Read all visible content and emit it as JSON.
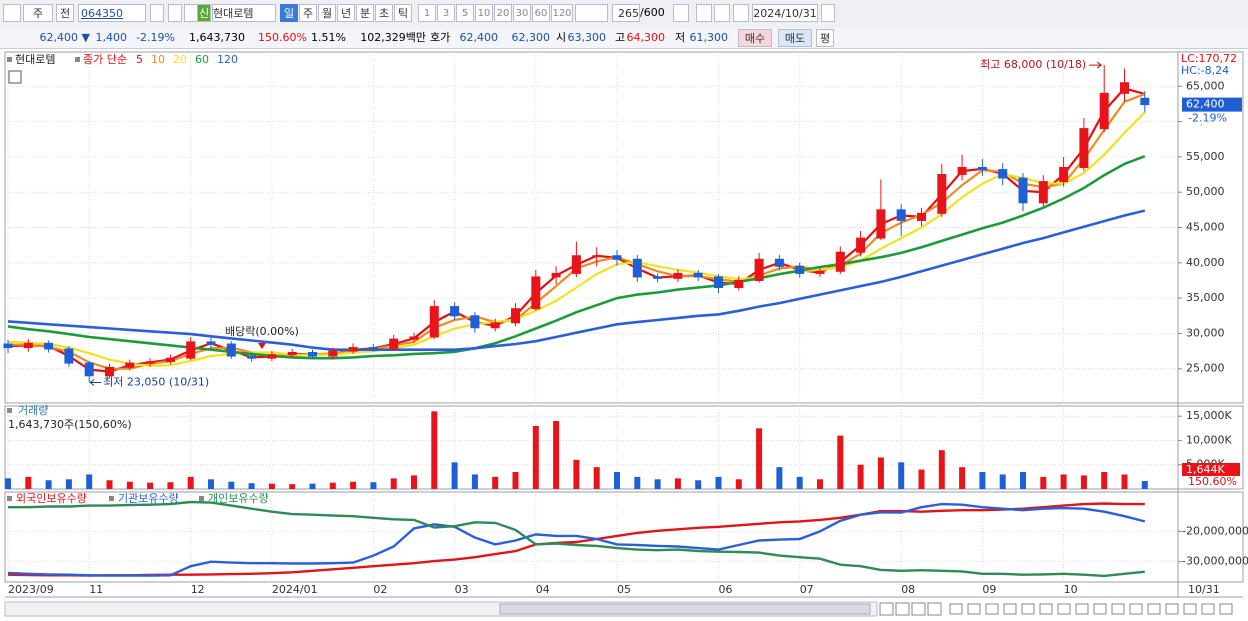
{
  "toolbar": {
    "period": "주",
    "prev": "전",
    "code": "064350",
    "badge": "신",
    "name": "현대로템",
    "tabs": [
      "일",
      "주",
      "월",
      "년",
      "분",
      "초",
      "틱"
    ],
    "intervals": [
      "1",
      "3",
      "5",
      "10",
      "20",
      "30",
      "60",
      "120"
    ],
    "count": "265",
    "max": "/600",
    "date": "2024/10/31"
  },
  "quote": {
    "price": "62,400 ▼",
    "change": "1,400",
    "rate": "-2.19%",
    "volume": "1,643,730",
    "volume_rate": "150.60%",
    "turnover": "1.51%",
    "amount": "102,329백만",
    "ask_label": "호가",
    "ask": "62,400",
    "bid": "62,300",
    "open_label": "시",
    "open": "63,300",
    "high_label": "고",
    "high": "64,300",
    "low_label": "저",
    "low": "61,300",
    "buy": "매수",
    "sell": "매도",
    "eval": "평"
  },
  "chart_data": [
    {
      "type": "candlestick",
      "title": "현대로템",
      "legend_title": "종가 단순",
      "lc_label": "LC:170,72",
      "hc_label": "HC:-8,24",
      "last_label": "62,400",
      "change_label": "-2.19%",
      "categories": [
        "2023/09",
        null,
        null,
        null,
        "11",
        null,
        null,
        null,
        null,
        "12",
        null,
        null,
        null,
        "2024/01",
        null,
        null,
        null,
        null,
        "02",
        null,
        null,
        null,
        "03",
        null,
        null,
        null,
        "04",
        null,
        null,
        null,
        "05",
        null,
        null,
        null,
        null,
        "06",
        null,
        null,
        null,
        "07",
        null,
        null,
        null,
        null,
        "08",
        null,
        null,
        null,
        "09",
        null,
        null,
        null,
        "10",
        null,
        null,
        null,
        null
      ],
      "open": [
        28500,
        28000,
        28600,
        27800,
        25800,
        24000,
        25200,
        25800,
        26000,
        26500,
        28800,
        28500,
        26800,
        26500,
        27000,
        27300,
        26800,
        27500,
        28000,
        27800,
        29200,
        29500,
        33800,
        32500,
        30800,
        31500,
        33500,
        38000,
        38500,
        41000,
        41000,
        40500,
        38000,
        37800,
        38500,
        38000,
        36500,
        37500,
        40500,
        39500,
        38500,
        38800,
        41500,
        43500,
        47500,
        46000,
        47000,
        52500,
        53500,
        53200,
        52000,
        48500,
        51500,
        53500,
        59000,
        64000,
        63300
      ],
      "high": [
        29100,
        29200,
        29000,
        28200,
        26100,
        25700,
        26300,
        26500,
        27000,
        29500,
        29400,
        28900,
        27300,
        27500,
        27800,
        27700,
        28000,
        28600,
        28500,
        29800,
        30100,
        34700,
        34400,
        33000,
        32100,
        34300,
        39000,
        39500,
        43000,
        42200,
        41800,
        41100,
        38500,
        39100,
        39000,
        38400,
        38100,
        41400,
        41100,
        40000,
        39400,
        42300,
        44500,
        51800,
        48300,
        47800,
        54000,
        55300,
        54700,
        54100,
        52700,
        52400,
        55000,
        60500,
        68000,
        67500,
        64300
      ],
      "low": [
        27200,
        27400,
        27300,
        25300,
        23050,
        23700,
        24800,
        25300,
        25600,
        26200,
        27900,
        26400,
        26000,
        26100,
        26600,
        26400,
        26400,
        27100,
        27400,
        27500,
        28800,
        29200,
        31900,
        30100,
        30300,
        31000,
        33200,
        37000,
        38000,
        39500,
        39600,
        37300,
        37200,
        37300,
        37400,
        35700,
        36100,
        37200,
        38900,
        37900,
        38000,
        38400,
        40900,
        43200,
        43800,
        45200,
        46500,
        51700,
        52300,
        51000,
        47300,
        48000,
        50800,
        53000,
        58500,
        62800,
        61300
      ],
      "close": [
        28000,
        28600,
        27800,
        25800,
        24000,
        25200,
        25800,
        26000,
        26500,
        28800,
        28500,
        26800,
        26500,
        27000,
        27300,
        26800,
        27500,
        28000,
        27800,
        29200,
        29500,
        33800,
        32500,
        30800,
        31500,
        33500,
        38000,
        38500,
        41000,
        41000,
        40500,
        38000,
        37800,
        38500,
        38000,
        36500,
        37500,
        40500,
        39500,
        38500,
        38800,
        41500,
        43500,
        47500,
        46000,
        47000,
        52500,
        53500,
        53200,
        52000,
        48500,
        51500,
        53500,
        59000,
        64000,
        65500,
        62400
      ],
      "up_color": "#e8141a",
      "down_color": "#1e5fd6",
      "series": [
        {
          "name": "5",
          "color": "#e01010",
          "values": [
            28200,
            28300,
            28200,
            26800,
            24900,
            24600,
            25500,
            25900,
            26300,
            27600,
            28600,
            27600,
            26600,
            26700,
            27100,
            27000,
            27100,
            27700,
            27900,
            28500,
            29300,
            31600,
            33100,
            31600,
            31100,
            32500,
            35700,
            38200,
            39700,
            41000,
            40700,
            39200,
            37900,
            38100,
            38200,
            37200,
            37000,
            39000,
            40000,
            39000,
            38600,
            40100,
            42500,
            45500,
            46700,
            46500,
            49700,
            53000,
            53300,
            52600,
            50200,
            50000,
            52500,
            56200,
            61500,
            64700,
            63900
          ]
        },
        {
          "name": "10",
          "color": "#f08a20",
          "values": [
            28400,
            28400,
            28100,
            27400,
            25900,
            25000,
            25000,
            25700,
            26100,
            27100,
            27900,
            28000,
            27300,
            26800,
            26900,
            27000,
            27200,
            27400,
            27800,
            28300,
            28800,
            30800,
            31900,
            32400,
            31600,
            31900,
            34300,
            36700,
            39200,
            40200,
            40800,
            39800,
            38800,
            38100,
            38100,
            37700,
            37300,
            38200,
            39200,
            39500,
            38900,
            39600,
            41300,
            44200,
            45700,
            46800,
            48500,
            51000,
            53100,
            52900,
            51200,
            50700,
            51200,
            54700,
            58800,
            62800,
            63900
          ]
        },
        {
          "name": "20",
          "color": "#f2e21e",
          "values": [
            28800,
            28700,
            28500,
            28000,
            27200,
            26300,
            25700,
            25400,
            25500,
            26100,
            26800,
            27100,
            27300,
            27300,
            27000,
            26900,
            27000,
            27300,
            27500,
            27900,
            28400,
            29600,
            30700,
            31300,
            31600,
            32000,
            33200,
            34600,
            36500,
            38400,
            39800,
            40100,
            39500,
            39000,
            38600,
            38100,
            37700,
            37900,
            38400,
            38800,
            39000,
            39400,
            40300,
            42000,
            43500,
            45000,
            46900,
            49300,
            51200,
            52600,
            52000,
            51300,
            51200,
            52700,
            55300,
            58400,
            61300
          ]
        },
        {
          "name": "60",
          "color": "#1e9a3c",
          "values": [
            31000,
            30600,
            30300,
            29900,
            29500,
            29200,
            28900,
            28600,
            28300,
            28000,
            27700,
            27400,
            27100,
            26800,
            26600,
            26500,
            26500,
            26600,
            26800,
            26900,
            27100,
            27200,
            27400,
            27900,
            28600,
            29600,
            30700,
            31800,
            33000,
            34000,
            35000,
            35500,
            35800,
            36200,
            36500,
            36800,
            37300,
            37800,
            38400,
            38900,
            39400,
            39800,
            40300,
            40800,
            41400,
            42200,
            43100,
            44000,
            44900,
            45700,
            46700,
            47800,
            49100,
            50600,
            52400,
            54000,
            55100
          ]
        },
        {
          "name": "120",
          "color": "#2a5fd8",
          "values": [
            31700,
            31500,
            31300,
            31100,
            30900,
            30700,
            30500,
            30300,
            30100,
            29900,
            29600,
            29300,
            29000,
            28700,
            28400,
            28000,
            27700,
            27700,
            27700,
            27700,
            27700,
            27700,
            27700,
            27900,
            28200,
            28500,
            28900,
            29500,
            30100,
            30700,
            31300,
            31600,
            31900,
            32200,
            32500,
            32700,
            33200,
            33800,
            34300,
            34900,
            35500,
            36100,
            36700,
            37300,
            38000,
            38800,
            39600,
            40400,
            41200,
            42000,
            42800,
            43500,
            44300,
            45100,
            45900,
            46700,
            47400
          ]
        }
      ],
      "annotations": [
        {
          "text": "최고 68,000 (10/18)"
        },
        {
          "text": "최저 23,050 (10/31)"
        },
        {
          "text": "배당락(0.00%)"
        }
      ],
      "ylim": [
        20150,
        69850
      ],
      "yticks": [
        {
          "value": 25000,
          "label": "25,000"
        },
        {
          "value": 30000,
          "label": "30,000"
        },
        {
          "value": 35000,
          "label": "35,000"
        },
        {
          "value": 40000,
          "label": "40,000"
        },
        {
          "value": 45000,
          "label": "45,000"
        },
        {
          "value": 50000,
          "label": "50,000"
        },
        {
          "value": 55000,
          "label": "55,000"
        },
        {
          "value": 60000,
          "label": "60,000"
        },
        {
          "value": 65000,
          "label": "65,000"
        }
      ],
      "grid": true,
      "x_end_label": "10/31"
    },
    {
      "type": "bar",
      "title": "거래량",
      "subtitle": "1,643,730주(150,60%)",
      "last_label": "1,644K",
      "rate_label": "150.60%",
      "values": [
        2200,
        2500,
        1800,
        2000,
        3000,
        1800,
        1500,
        1300,
        1400,
        2500,
        2000,
        1500,
        1200,
        1100,
        1000,
        1100,
        1300,
        1500,
        1400,
        2200,
        2800,
        16000,
        5500,
        3000,
        2500,
        3500,
        13000,
        14000,
        6000,
        4500,
        3500,
        2500,
        2000,
        2200,
        1800,
        2500,
        2000,
        12500,
        4500,
        2500,
        2000,
        11000,
        5000,
        6500,
        5500,
        4000,
        8000,
        4500,
        3500,
        3000,
        3500,
        2500,
        3000,
        2800,
        3500,
        3000,
        1643.73
      ],
      "ylim": [
        0,
        17100
      ],
      "yticks": [
        {
          "value": 5000,
          "label": "5,000K"
        },
        {
          "value": 10000,
          "label": "10,000K"
        },
        {
          "value": 15000,
          "label": "15,000K"
        }
      ],
      "grid": true
    },
    {
      "type": "line",
      "series": [
        {
          "name": "외국인보유수량",
          "color": "#e0141a",
          "values": [
            -34300000,
            -34400000,
            -34500000,
            -34500000,
            -34600000,
            -34500000,
            -34500000,
            -34400000,
            -34300000,
            -34300000,
            -34200000,
            -34100000,
            -34000000,
            -33800000,
            -33500000,
            -33000000,
            -32500000,
            -32000000,
            -31500000,
            -31000000,
            -30500000,
            -29800000,
            -29300000,
            -28500000,
            -27500000,
            -26500000,
            -24300000,
            -23800000,
            -23500000,
            -22500000,
            -21500000,
            -20500000,
            -19800000,
            -19300000,
            -18800000,
            -18500000,
            -18000000,
            -17500000,
            -17000000,
            -16700000,
            -16200000,
            -15500000,
            -14500000,
            -13300000,
            -13300000,
            -13500000,
            -13200000,
            -13000000,
            -13000000,
            -12800000,
            -12500000,
            -12000000,
            -11500000,
            -11000000,
            -10800000,
            -11000000,
            -11000000
          ]
        },
        {
          "name": "기관보유수량",
          "color": "#2a5fd8",
          "values": [
            -33700000,
            -34000000,
            -34200000,
            -34300000,
            -34500000,
            -34600000,
            -34600000,
            -34600000,
            -34500000,
            -31500000,
            -30000000,
            -30300000,
            -30500000,
            -30500000,
            -30600000,
            -30600000,
            -30500000,
            -30300000,
            -28000000,
            -25000000,
            -19000000,
            -17700000,
            -18500000,
            -22000000,
            -24300000,
            -23000000,
            -21000000,
            -21500000,
            -21500000,
            -22500000,
            -24300000,
            -24500000,
            -24800000,
            -25000000,
            -25500000,
            -26000000,
            -24500000,
            -23000000,
            -22700000,
            -22500000,
            -20000000,
            -16500000,
            -14500000,
            -13700000,
            -13800000,
            -12000000,
            -11000000,
            -11200000,
            -12000000,
            -12500000,
            -13000000,
            -12500000,
            -12300000,
            -12500000,
            -13500000,
            -15000000,
            -16700000
          ]
        },
        {
          "name": "개인보유수량",
          "color": "#2e8b57",
          "values": [
            -12000000,
            -12000000,
            -11800000,
            -11800000,
            -11500000,
            -11500000,
            -11300000,
            -11200000,
            -11000000,
            -10300000,
            -10500000,
            -11500000,
            -12500000,
            -13500000,
            -14300000,
            -14500000,
            -14800000,
            -15000000,
            -15500000,
            -16000000,
            -16200000,
            -18700000,
            -18300000,
            -17000000,
            -17200000,
            -19500000,
            -24300000,
            -24000000,
            -24500000,
            -24800000,
            -25500000,
            -26000000,
            -26200000,
            -26000000,
            -26500000,
            -26700000,
            -26800000,
            -27000000,
            -28000000,
            -28500000,
            -29000000,
            -31000000,
            -31500000,
            -32700000,
            -33000000,
            -32800000,
            -33000000,
            -33200000,
            -34000000,
            -34000000,
            -34300000,
            -34200000,
            -34000000,
            -34300000,
            -34700000,
            -34000000,
            -33300000
          ]
        }
      ],
      "ylim": [
        -36700000,
        -7000000
      ],
      "yticks": [
        {
          "value": -20000000,
          "label": "-20,000,000"
        },
        {
          "value": -30000000,
          "label": "-30,000,000"
        }
      ],
      "grid": true
    }
  ]
}
